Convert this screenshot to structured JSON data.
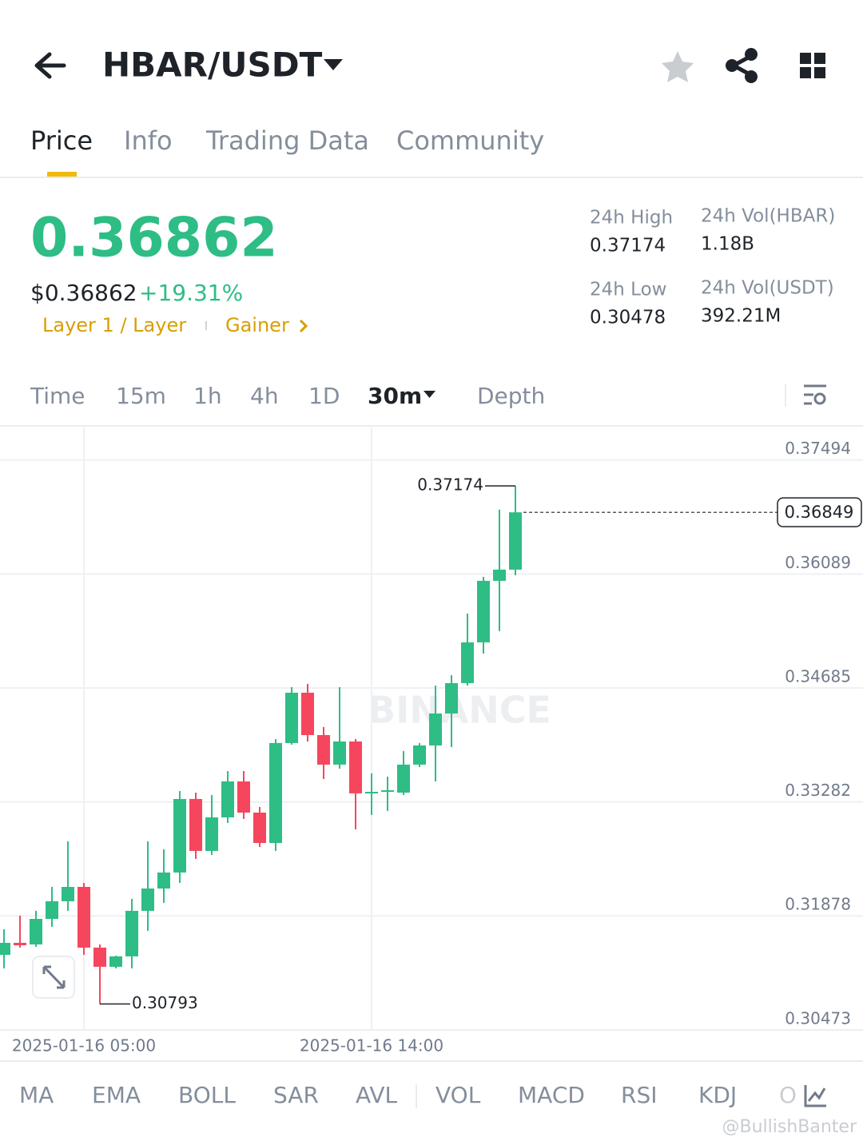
{
  "header": {
    "title": "HBAR/USDT"
  },
  "tabs": [
    "Price",
    "Info",
    "Trading Data",
    "Community"
  ],
  "price": {
    "last": "0.36862",
    "usd": "$0.36862",
    "change": "+19.31%",
    "tags": [
      "Layer 1 / Layer",
      "Gainer"
    ]
  },
  "stats": [
    {
      "label": "24h High",
      "value": "0.37174"
    },
    {
      "label": "24h Vol(HBAR)",
      "value": "1.18B"
    },
    {
      "label": "24h Low",
      "value": "0.30478"
    },
    {
      "label": "24h Vol(USDT)",
      "value": "392.21M"
    }
  ],
  "intervals": [
    "Time",
    "15m",
    "1h",
    "4h",
    "1D",
    "30m",
    "Depth"
  ],
  "indicators": [
    "MA",
    "EMA",
    "BOLL",
    "SAR",
    "AVL",
    "VOL",
    "MACD",
    "RSI",
    "KDJ",
    "O"
  ],
  "watermark": "@BullishBanter",
  "chart_data": {
    "type": "candlestick",
    "watermark": "BINANCE",
    "categories": [
      null,
      null,
      null,
      null,
      null,
      "2025-01-16 05:00",
      null,
      null,
      null,
      null,
      null,
      null,
      null,
      null,
      null,
      null,
      null,
      null,
      null,
      null,
      null,
      null,
      null,
      "2025-01-16 14:00",
      null,
      null,
      null,
      null,
      null,
      null,
      null,
      null,
      null
    ],
    "open": [
      0.31398,
      0.31546,
      0.31526,
      0.31841,
      0.32058,
      0.32235,
      0.31487,
      0.31251,
      0.31379,
      0.3194,
      0.32215,
      0.32412,
      0.33318,
      0.32678,
      0.33091,
      0.33534,
      0.3315,
      0.32776,
      0.34007,
      0.34627,
      0.34105,
      0.33741,
      0.34026,
      0.33387,
      0.33406,
      0.33396,
      0.33741,
      0.33977,
      0.34371,
      0.34745,
      0.35247,
      0.36005,
      0.36143
    ],
    "high": [
      0.31713,
      0.31881,
      0.3194,
      0.32235,
      0.32796,
      0.32284,
      0.31526,
      0.31388,
      0.32087,
      0.32796,
      0.32698,
      0.33416,
      0.33396,
      0.33367,
      0.33662,
      0.33662,
      0.33219,
      0.34056,
      0.34696,
      0.34735,
      0.34204,
      0.34696,
      0.34056,
      0.33633,
      0.33593,
      0.33908,
      0.34007,
      0.34715,
      0.34843,
      0.35601,
      0.36054,
      0.36881,
      0.37174
    ],
    "low": [
      0.31231,
      0.31487,
      0.31497,
      0.31743,
      0.3194,
      0.31398,
      0.30793,
      0.31231,
      0.31231,
      0.31694,
      0.32038,
      0.32284,
      0.32579,
      0.32629,
      0.33022,
      0.33072,
      0.32727,
      0.32678,
      0.33987,
      0.34026,
      0.33564,
      0.33692,
      0.32944,
      0.33121,
      0.3317,
      0.33367,
      0.33711,
      0.33534,
      0.33957,
      0.34715,
      0.35109,
      0.35385,
      0.36074
    ],
    "close": [
      0.31546,
      0.31516,
      0.31841,
      0.32058,
      0.32235,
      0.31487,
      0.31251,
      0.31379,
      0.3194,
      0.32215,
      0.32412,
      0.33318,
      0.32678,
      0.33091,
      0.33534,
      0.3315,
      0.32776,
      0.34007,
      0.34627,
      0.34105,
      0.33741,
      0.34026,
      0.33387,
      0.33406,
      0.33426,
      0.33741,
      0.33977,
      0.34371,
      0.34745,
      0.35247,
      0.36005,
      0.36143,
      0.36849
    ],
    "up_color": "#2ebd85",
    "down_color": "#f6465d",
    "ylim": [
      0.30473,
      0.37894
    ],
    "yticks": [
      0.30473,
      0.31878,
      0.33282,
      0.34685,
      0.36089,
      0.37494
    ],
    "grid": true
  }
}
